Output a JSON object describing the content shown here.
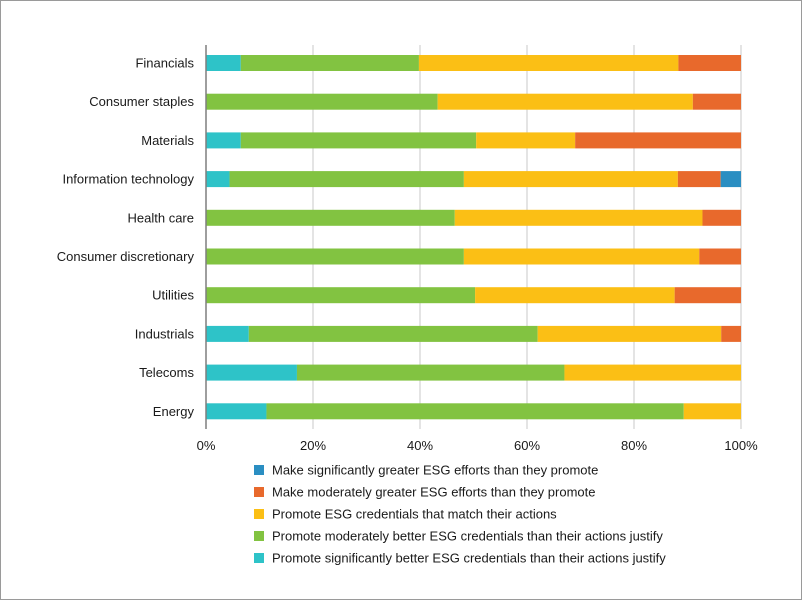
{
  "chart_data": {
    "type": "bar",
    "orientation": "horizontal",
    "stacked": true,
    "percent": true,
    "title": "",
    "xlabel": "",
    "ylabel": "",
    "xlim": [
      0,
      100
    ],
    "grid": true,
    "legend_position": "bottom",
    "categories": [
      "Financials",
      "Consumer staples",
      "Materials",
      "Information technology",
      "Health care",
      "Consumer discretionary",
      "Utilities",
      "Industrials",
      "Telecoms",
      "Energy"
    ],
    "x_ticks": [
      "0%",
      "20%",
      "40%",
      "60%",
      "80%",
      "100%"
    ],
    "x_tick_values": [
      0,
      20,
      40,
      60,
      80,
      100
    ],
    "series": [
      {
        "name": "Promote significantly better ESG credentials than their actions justify",
        "color": "#2ec3c8",
        "values": [
          6.5,
          0,
          6.5,
          4.4,
          0,
          0,
          0,
          8,
          17,
          11.3
        ]
      },
      {
        "name": "Promote moderately better ESG credentials than their actions justify",
        "color": "#82c341",
        "values": [
          33.3,
          43.3,
          44,
          43.8,
          46.5,
          48.2,
          50.3,
          54,
          50,
          78
        ]
      },
      {
        "name": "Promote ESG credentials that match their actions",
        "color": "#fbbf15",
        "values": [
          48.5,
          47.7,
          18.5,
          40,
          46.3,
          44,
          37.3,
          34.3,
          33,
          10.7
        ]
      },
      {
        "name": "Make moderately greater ESG efforts than they promote",
        "color": "#e8692c",
        "values": [
          11.7,
          9,
          31,
          8,
          7.2,
          7.8,
          12.4,
          3.7,
          0,
          0
        ]
      },
      {
        "name": "Make significantly greater ESG efforts than they promote",
        "color": "#2a8ec2",
        "values": [
          0,
          0,
          0,
          3.8,
          0,
          0,
          0,
          0,
          0,
          0
        ]
      }
    ]
  }
}
